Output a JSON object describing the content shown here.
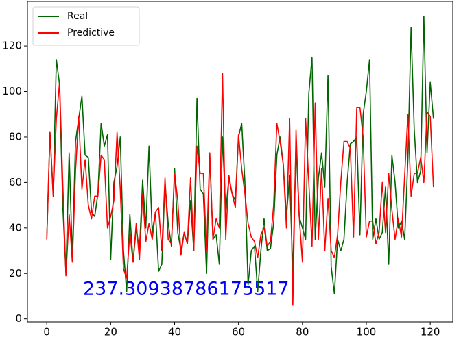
{
  "chart_data": {
    "type": "line",
    "annotation": "237.30938786175517",
    "x": [
      0,
      1,
      2,
      3,
      4,
      5,
      6,
      7,
      8,
      9,
      10,
      11,
      12,
      13,
      14,
      15,
      16,
      17,
      18,
      19,
      20,
      21,
      22,
      23,
      24,
      25,
      26,
      27,
      28,
      29,
      30,
      31,
      32,
      33,
      34,
      35,
      36,
      37,
      38,
      39,
      40,
      41,
      42,
      43,
      44,
      45,
      46,
      47,
      48,
      49,
      50,
      51,
      52,
      53,
      54,
      55,
      56,
      57,
      58,
      59,
      60,
      61,
      62,
      63,
      64,
      65,
      66,
      67,
      68,
      69,
      70,
      71,
      72,
      73,
      74,
      75,
      76,
      77,
      78,
      79,
      80,
      81,
      82,
      83,
      84,
      85,
      86,
      87,
      88,
      89,
      90,
      91,
      92,
      93,
      94,
      95,
      96,
      97,
      98,
      99,
      100,
      101,
      102,
      103,
      104,
      105,
      106,
      107,
      108,
      109,
      110,
      111,
      112,
      113,
      114,
      115,
      116,
      117,
      118,
      119,
      120,
      121
    ],
    "series": [
      {
        "name": "Real",
        "color": "#006400",
        "values": [
          35,
          82,
          55,
          114,
          103,
          50,
          20,
          73,
          27,
          78,
          88,
          98,
          72,
          71,
          47,
          45,
          55,
          86,
          76,
          81,
          26,
          60,
          67,
          80,
          30,
          12,
          46,
          25,
          40,
          30,
          61,
          40,
          76,
          38,
          47,
          21,
          24,
          60,
          42,
          32,
          66,
          38,
          30,
          38,
          33,
          52,
          30,
          97,
          57,
          55,
          20,
          72,
          35,
          37,
          24,
          80,
          47,
          62,
          55,
          52,
          80,
          86,
          60,
          15,
          30,
          32,
          12,
          30,
          44,
          30,
          31,
          42,
          72,
          80,
          68,
          45,
          63,
          20,
          77,
          45,
          40,
          35,
          99,
          115,
          35,
          62,
          73,
          58,
          107,
          23,
          11,
          35,
          30,
          35,
          60,
          77,
          78,
          80,
          37,
          90,
          100,
          114,
          35,
          44,
          35,
          38,
          58,
          24,
          72,
          60,
          40,
          43,
          35,
          70,
          128,
          83,
          60,
          65,
          133,
          73,
          104,
          88
        ]
      },
      {
        "name": "Predictive",
        "color": "#ff0000",
        "values": [
          35,
          82,
          54,
          88,
          104,
          60,
          19,
          46,
          25,
          65,
          89,
          57,
          70,
          50,
          44,
          54,
          54,
          72,
          70,
          40,
          45,
          52,
          82,
          57,
          22,
          18,
          38,
          25,
          42,
          26,
          55,
          34,
          42,
          35,
          47,
          49,
          30,
          62,
          35,
          33,
          64,
          52,
          28,
          38,
          33,
          62,
          30,
          76,
          64,
          64,
          30,
          73,
          35,
          44,
          40,
          108,
          35,
          63,
          55,
          49,
          81,
          66,
          55,
          42,
          36,
          34,
          27,
          37,
          40,
          32,
          34,
          50,
          86,
          78,
          68,
          40,
          88,
          6,
          83,
          45,
          25,
          88,
          60,
          32,
          95,
          35,
          66,
          30,
          53,
          30,
          27,
          37,
          60,
          78,
          78,
          75,
          36,
          93,
          93,
          80,
          36,
          43,
          43,
          33,
          38,
          60,
          38,
          64,
          48,
          35,
          44,
          36,
          63,
          90,
          54,
          64,
          64,
          71,
          60,
          91,
          89,
          58
        ]
      }
    ],
    "xlim": [
      -6.05,
      127.05
    ],
    "ylim": [
      -1.3,
      139.6
    ],
    "xticks": [
      0,
      20,
      40,
      60,
      80,
      100,
      120
    ],
    "yticks": [
      0,
      20,
      40,
      60,
      80,
      100,
      120
    ],
    "legend": "upper left"
  }
}
